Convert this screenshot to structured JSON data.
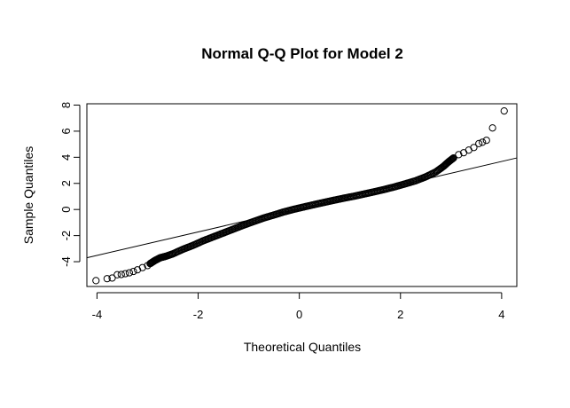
{
  "chart_data": {
    "type": "scatter",
    "title": "Normal Q-Q Plot for Model 2",
    "xlabel": "Theoretical Quantiles",
    "ylabel": "Sample Quantiles",
    "xlim": [
      -4.2,
      4.3
    ],
    "ylim": [
      -5.9,
      8.1
    ],
    "x_ticks": [
      -4,
      -2,
      0,
      2,
      4
    ],
    "y_ticks": [
      -4,
      -2,
      0,
      2,
      4,
      6,
      8
    ],
    "grid": false,
    "reference_line": {
      "intercept": 0.08,
      "slope": 0.9
    },
    "points": [
      [
        -4.02,
        -5.45
      ],
      [
        -3.8,
        -5.3
      ],
      [
        -3.7,
        -5.25
      ],
      [
        -3.6,
        -5.0
      ],
      [
        -3.52,
        -4.98
      ],
      [
        -3.44,
        -4.92
      ],
      [
        -3.36,
        -4.85
      ],
      [
        -3.28,
        -4.75
      ],
      [
        -3.2,
        -4.62
      ],
      [
        -3.1,
        -4.45
      ],
      [
        -3.0,
        -4.3
      ],
      [
        -2.95,
        -4.15
      ],
      [
        -2.85,
        -3.9
      ],
      [
        -2.75,
        -3.7
      ],
      [
        -2.65,
        -3.6
      ],
      [
        -2.5,
        -3.4
      ],
      [
        -2.3,
        -3.05
      ],
      [
        -2.1,
        -2.75
      ],
      [
        -1.9,
        -2.4
      ],
      [
        -1.7,
        -2.1
      ],
      [
        -1.5,
        -1.8
      ],
      [
        -1.3,
        -1.5
      ],
      [
        -1.1,
        -1.2
      ],
      [
        -0.9,
        -0.92
      ],
      [
        -0.7,
        -0.65
      ],
      [
        -0.5,
        -0.42
      ],
      [
        -0.3,
        -0.18
      ],
      [
        -0.1,
        0.02
      ],
      [
        0.1,
        0.2
      ],
      [
        0.3,
        0.38
      ],
      [
        0.5,
        0.55
      ],
      [
        0.7,
        0.72
      ],
      [
        0.9,
        0.88
      ],
      [
        1.1,
        1.03
      ],
      [
        1.3,
        1.2
      ],
      [
        1.5,
        1.37
      ],
      [
        1.7,
        1.55
      ],
      [
        1.9,
        1.75
      ],
      [
        2.1,
        1.97
      ],
      [
        2.3,
        2.2
      ],
      [
        2.5,
        2.5
      ],
      [
        2.7,
        2.88
      ],
      [
        2.85,
        3.3
      ],
      [
        2.95,
        3.65
      ],
      [
        3.05,
        3.95
      ],
      [
        3.15,
        4.2
      ],
      [
        3.25,
        4.35
      ],
      [
        3.35,
        4.55
      ],
      [
        3.45,
        4.75
      ],
      [
        3.55,
        5.05
      ],
      [
        3.62,
        5.15
      ],
      [
        3.7,
        5.3
      ],
      [
        3.82,
        6.25
      ],
      [
        4.05,
        7.55
      ]
    ]
  }
}
